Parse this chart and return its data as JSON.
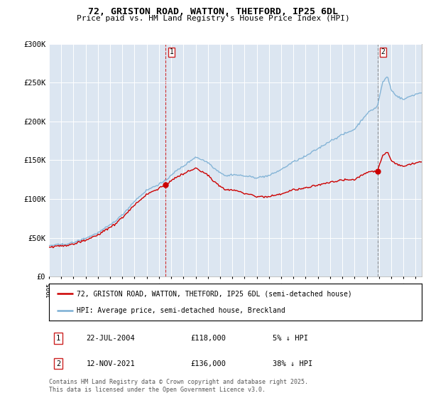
{
  "title_line1": "72, GRISTON ROAD, WATTON, THETFORD, IP25 6DL",
  "title_line2": "Price paid vs. HM Land Registry's House Price Index (HPI)",
  "background_color": "#dce6f1",
  "plot_bg_color": "#dce6f1",
  "fig_bg_color": "#ffffff",
  "ylim": [
    0,
    300000
  ],
  "yticks": [
    0,
    50000,
    100000,
    150000,
    200000,
    250000,
    300000
  ],
  "ytick_labels": [
    "£0",
    "£50K",
    "£100K",
    "£150K",
    "£200K",
    "£250K",
    "£300K"
  ],
  "sale1_date": 2004.55,
  "sale1_price": 118000,
  "sale2_date": 2021.87,
  "sale2_price": 136000,
  "legend_line1": "72, GRISTON ROAD, WATTON, THETFORD, IP25 6DL (semi-detached house)",
  "legend_line2": "HPI: Average price, semi-detached house, Breckland",
  "note1_label": "1",
  "note1_date": "22-JUL-2004",
  "note1_price": "£118,000",
  "note1_pct": "5% ↓ HPI",
  "note2_label": "2",
  "note2_date": "12-NOV-2021",
  "note2_price": "£136,000",
  "note2_pct": "38% ↓ HPI",
  "footer": "Contains HM Land Registry data © Crown copyright and database right 2025.\nThis data is licensed under the Open Government Licence v3.0.",
  "line_red": "#cc0000",
  "line_blue": "#7bafd4",
  "xmin": 1995,
  "xmax": 2025.5
}
